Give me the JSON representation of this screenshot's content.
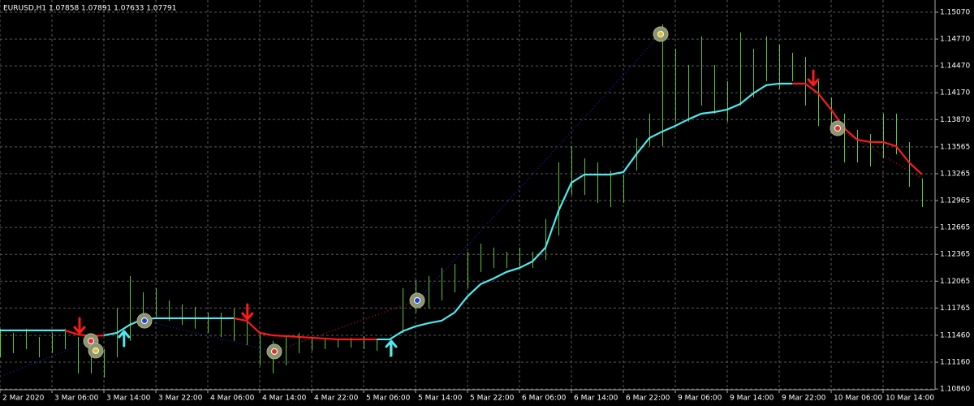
{
  "chart_data": {
    "type": "ohlc",
    "title": "EURUSD,H1  1.07858 1.07891 1.07633 1.07791",
    "bar_color": "#5ec832",
    "grid": true,
    "grid_color": "#5a5a5a",
    "xlim": [
      0,
      144
    ],
    "ylim": [
      1.10852,
      1.15206
    ],
    "xticks": [
      {
        "value": 0,
        "label": "2 Mar 2020"
      },
      {
        "value": 8,
        "label": "3 Mar 06:00"
      },
      {
        "value": 16,
        "label": "3 Mar 14:00"
      },
      {
        "value": 24,
        "label": "3 Mar 22:00"
      },
      {
        "value": 32,
        "label": "4 Mar 06:00"
      },
      {
        "value": 40,
        "label": "4 Mar 14:00"
      },
      {
        "value": 48,
        "label": "4 Mar 22:00"
      },
      {
        "value": 56,
        "label": "5 Mar 06:00"
      },
      {
        "value": 64,
        "label": "5 Mar 14:00"
      },
      {
        "value": 72,
        "label": "5 Mar 22:00"
      },
      {
        "value": 80,
        "label": "6 Mar 06:00"
      },
      {
        "value": 88,
        "label": "6 Mar 14:00"
      },
      {
        "value": 96,
        "label": "6 Mar 22:00"
      },
      {
        "value": 104,
        "label": "9 Mar 06:00"
      },
      {
        "value": 112,
        "label": "9 Mar 14:00"
      },
      {
        "value": 120,
        "label": "9 Mar 22:00"
      },
      {
        "value": 128,
        "label": "10 Mar 06:00"
      },
      {
        "value": 136,
        "label": "10 Mar 14:00"
      }
    ],
    "yticks": [
      {
        "value": 1.1507,
        "label": "1.15070"
      },
      {
        "value": 1.1477,
        "label": "1.14770"
      },
      {
        "value": 1.1447,
        "label": "1.14470"
      },
      {
        "value": 1.1417,
        "label": "1.14170"
      },
      {
        "value": 1.1387,
        "label": "1.13870"
      },
      1.13565,
      1.13265,
      1.12965,
      1.12665,
      1.12365,
      1.12065,
      1.11765,
      {
        "value": 1.1146,
        "label": "1.11460"
      },
      {
        "value": 1.1116,
        "label": "1.11160"
      },
      {
        "value": 1.1086,
        "label": "1.10860"
      }
    ],
    "x": [
      0,
      2,
      4,
      6,
      8,
      10,
      12,
      14,
      16,
      18,
      20,
      22,
      24,
      26,
      28,
      30,
      32,
      34,
      36,
      38,
      40,
      42,
      44,
      46,
      48,
      50,
      52,
      54,
      56,
      58,
      60,
      62,
      64,
      66,
      68,
      70,
      72,
      74,
      76,
      78,
      80,
      82,
      84,
      86,
      88,
      90,
      92,
      94,
      96,
      98,
      100,
      102,
      104,
      106,
      108,
      110,
      112,
      114,
      116,
      118,
      120,
      122,
      124,
      126,
      128,
      130,
      132,
      134,
      136,
      138,
      140,
      142
    ],
    "high": [
      1.11533,
      1.11487,
      1.11533,
      1.11442,
      1.11487,
      1.11533,
      1.11442,
      1.11351,
      1.11306,
      1.11759,
      1.12122,
      1.11941,
      1.11986,
      1.1185,
      1.11805,
      1.11778,
      1.11714,
      1.11714,
      1.11759,
      1.11623,
      1.11487,
      1.11397,
      1.11442,
      1.11487,
      1.11442,
      1.11433,
      1.11415,
      1.11433,
      1.11451,
      1.11415,
      1.11397,
      1.11986,
      1.12077,
      1.12122,
      1.12213,
      1.12258,
      1.12394,
      1.12485,
      1.1244,
      1.12394,
      1.1244,
      1.12394,
      1.12757,
      1.13392,
      1.13573,
      1.13437,
      1.13392,
      1.13301,
      1.13256,
      1.13664,
      1.13936,
      1.14934,
      1.14662,
      1.1448,
      1.14798,
      1.1448,
      1.14299,
      1.14843,
      1.14662,
      1.14798,
      1.14707,
      1.14616,
      1.14571,
      1.14299,
      1.14118,
      1.13936,
      1.13755,
      1.13709,
      1.13936,
      1.13936,
      1.13619,
      1.13211
    ],
    "low": [
      1.11215,
      1.11261,
      1.11306,
      1.11215,
      1.11261,
      1.11306,
      1.11034,
      1.11034,
      1.10988,
      1.11215,
      1.11397,
      1.11578,
      1.11669,
      1.11623,
      1.11578,
      1.11533,
      1.11487,
      1.11442,
      1.11397,
      1.11351,
      1.11125,
      1.11034,
      1.11125,
      1.11261,
      1.11288,
      1.11306,
      1.11324,
      1.11324,
      1.11306,
      1.11288,
      1.11215,
      1.11487,
      1.11714,
      1.11759,
      1.1185,
      1.11941,
      1.11986,
      1.12168,
      1.12213,
      1.12213,
      1.12213,
      1.12213,
      1.12304,
      1.12576,
      1.13029,
      1.13029,
      1.12939,
      1.12893,
      1.12939,
      1.13301,
      1.13573,
      1.13573,
      1.13846,
      1.13846,
      1.14027,
      1.13936,
      1.13846,
      1.14027,
      1.14118,
      1.14299,
      1.14208,
      1.14299,
      1.14027,
      1.138,
      1.13755,
      1.13392,
      1.13392,
      1.13347,
      1.13437,
      1.13483,
      1.1312,
      1.12893
    ],
    "ma": {
      "values": [
        1.11515,
        1.11515,
        1.11515,
        1.11515,
        1.11515,
        1.11515,
        1.11469,
        1.11451,
        1.1146,
        1.11487,
        1.11578,
        1.11641,
        1.11651,
        1.11651,
        1.11651,
        1.11651,
        1.11651,
        1.11651,
        1.11651,
        1.11623,
        1.11487,
        1.1146,
        1.11451,
        1.11442,
        1.11433,
        1.11424,
        1.11415,
        1.11415,
        1.11415,
        1.11415,
        1.11415,
        1.11505,
        1.1156,
        1.11596,
        1.11623,
        1.11714,
        1.11895,
        1.12031,
        1.12095,
        1.12168,
        1.12213,
        1.12285,
        1.1244,
        1.12848,
        1.13165,
        1.13256,
        1.13256,
        1.13256,
        1.13283,
        1.13483,
        1.13664,
        1.13737,
        1.138,
        1.13873,
        1.13936,
        1.13954,
        1.13982,
        1.14045,
        1.14163,
        1.14254,
        1.14272,
        1.14272,
        1.14272,
        1.14163,
        1.13982,
        1.13773,
        1.13646,
        1.13619,
        1.13619,
        1.13573,
        1.13392,
        1.13256
      ],
      "colors": [
        "#4ee8f0",
        "#4ee8f0",
        "#4ee8f0",
        "#4ee8f0",
        "#4ee8f0",
        "#4ee8f0",
        "#ff1a1a",
        "#ff1a1a",
        "#ff1a1a",
        "#4ee8f0",
        "#4ee8f0",
        "#4ee8f0",
        "#4ee8f0",
        "#4ee8f0",
        "#4ee8f0",
        "#4ee8f0",
        "#4ee8f0",
        "#4ee8f0",
        "#4ee8f0",
        "#ff1a1a",
        "#ff1a1a",
        "#ff1a1a",
        "#ff1a1a",
        "#ff1a1a",
        "#ff1a1a",
        "#ff1a1a",
        "#ff1a1a",
        "#ff1a1a",
        "#ff1a1a",
        "#ff1a1a",
        "#4ee8f0",
        "#4ee8f0",
        "#4ee8f0",
        "#4ee8f0",
        "#4ee8f0",
        "#4ee8f0",
        "#4ee8f0",
        "#4ee8f0",
        "#4ee8f0",
        "#4ee8f0",
        "#4ee8f0",
        "#4ee8f0",
        "#4ee8f0",
        "#4ee8f0",
        "#4ee8f0",
        "#4ee8f0",
        "#4ee8f0",
        "#4ee8f0",
        "#4ee8f0",
        "#4ee8f0",
        "#4ee8f0",
        "#4ee8f0",
        "#4ee8f0",
        "#4ee8f0",
        "#4ee8f0",
        "#4ee8f0",
        "#4ee8f0",
        "#4ee8f0",
        "#4ee8f0",
        "#4ee8f0",
        "#4ee8f0",
        "#4ee8f0",
        "#ff1a1a",
        "#ff1a1a",
        "#ff1a1a",
        "#ff1a1a",
        "#ff1a1a",
        "#ff1a1a",
        "#ff1a1a",
        "#ff1a1a",
        "#ff1a1a",
        "#ff1a1a"
      ]
    },
    "arrows": [
      {
        "x": 12.25,
        "y": 1.11487,
        "dir": "down",
        "color": "#ff1a1a"
      },
      {
        "x": 19.1,
        "y": 1.11505,
        "dir": "up",
        "color": "#4ee8f0"
      },
      {
        "x": 38.1,
        "y": 1.11641,
        "dir": "down",
        "color": "#ff1a1a"
      },
      {
        "x": 60.25,
        "y": 1.11397,
        "dir": "up",
        "color": "#4ee8f0"
      },
      {
        "x": 125.25,
        "y": 1.14254,
        "dir": "down",
        "color": "#ff1a1a"
      }
    ],
    "circles": [
      {
        "x": 14,
        "y": 1.11397,
        "color": "#e03030"
      },
      {
        "x": 14.75,
        "y": 1.11288,
        "color": "#e0c030"
      },
      {
        "x": 22.25,
        "y": 1.11623,
        "color": "#2040e0"
      },
      {
        "x": 42.25,
        "y": 1.11279,
        "color": "#e03030"
      },
      {
        "x": 64.25,
        "y": 1.1185,
        "color": "#2040e0"
      },
      {
        "x": 101.75,
        "y": 1.14825,
        "color": "#e0c030"
      },
      {
        "x": 129,
        "y": 1.13773,
        "color": "#e03030"
      }
    ],
    "zigzag": [
      {
        "color": "#1a1aa0",
        "x": [
          0.6,
          14
        ],
        "y": [
          1.11016,
          1.11397
        ]
      },
      {
        "color": "#1a1aa0",
        "x": [
          22.25,
          42.25
        ],
        "y": [
          1.11623,
          1.11279
        ]
      },
      {
        "color": "#b01010",
        "x": [
          42.25,
          64.25
        ],
        "y": [
          1.11279,
          1.1185
        ]
      },
      {
        "color": "#1a1aa0",
        "x": [
          64.25,
          101.75
        ],
        "y": [
          1.1185,
          1.14825
        ]
      },
      {
        "color": "#b01010",
        "x": [
          129,
          142
        ],
        "y": [
          1.13773,
          1.13211
        ]
      }
    ]
  }
}
